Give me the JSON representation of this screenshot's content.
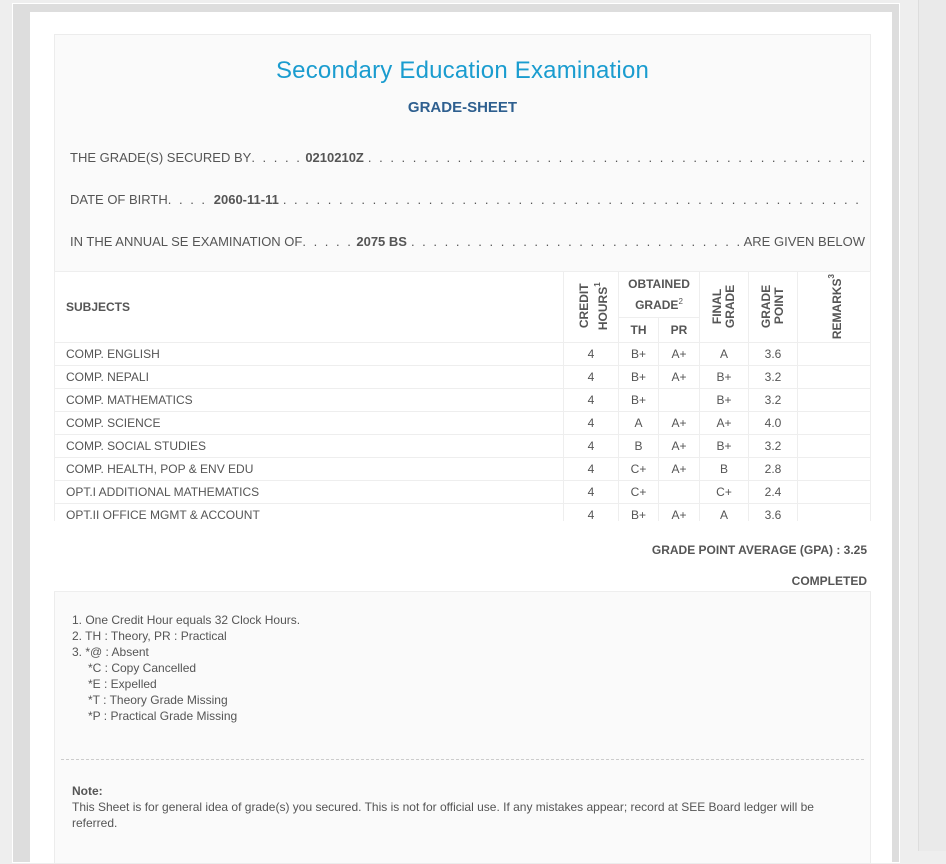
{
  "header": {
    "title": "Secondary Education Examination",
    "subtitle": "GRADE-SHEET"
  },
  "info": {
    "secured_by_label": "THE GRADE(S) SECURED BY",
    "secured_by_value": "0210210Z",
    "dob_label": "DATE OF BIRTH",
    "dob_value": "2060-11-11",
    "exam_label": "IN THE ANNUAL SE EXAMINATION OF",
    "exam_value": "2075 BS",
    "exam_suffix": "ARE GIVEN BELOW"
  },
  "table": {
    "headers": {
      "subjects": "SUBJECTS",
      "credit": "CREDIT HOURS",
      "credit_sup": "1",
      "obtained": "OBTAINED GRADE",
      "obtained_sup": "2",
      "th": "TH",
      "pr": "PR",
      "final": "FINAL GRADE",
      "gp": "GRADE POINT",
      "remarks": "REMARKS",
      "remarks_sup": "3"
    },
    "rows": [
      {
        "subject": "COMP. ENGLISH",
        "credit": "4",
        "th": "B+",
        "pr": "A+",
        "final": "A",
        "gp": "3.6",
        "remarks": ""
      },
      {
        "subject": "COMP. NEPALI",
        "credit": "4",
        "th": "B+",
        "pr": "A+",
        "final": "B+",
        "gp": "3.2",
        "remarks": ""
      },
      {
        "subject": "COMP. MATHEMATICS",
        "credit": "4",
        "th": "B+",
        "pr": "",
        "final": "B+",
        "gp": "3.2",
        "remarks": ""
      },
      {
        "subject": "COMP. SCIENCE",
        "credit": "4",
        "th": "A",
        "pr": "A+",
        "final": "A+",
        "gp": "4.0",
        "remarks": ""
      },
      {
        "subject": "COMP. SOCIAL STUDIES",
        "credit": "4",
        "th": "B",
        "pr": "A+",
        "final": "B+",
        "gp": "3.2",
        "remarks": ""
      },
      {
        "subject": "COMP. HEALTH, POP & ENV EDU",
        "credit": "4",
        "th": "C+",
        "pr": "A+",
        "final": "B",
        "gp": "2.8",
        "remarks": ""
      },
      {
        "subject": "OPT.I ADDITIONAL MATHEMATICS",
        "credit": "4",
        "th": "C+",
        "pr": "",
        "final": "C+",
        "gp": "2.4",
        "remarks": ""
      },
      {
        "subject": "OPT.II OFFICE MGMT & ACCOUNT",
        "credit": "4",
        "th": "B+",
        "pr": "A+",
        "final": "A",
        "gp": "3.6",
        "remarks": ""
      }
    ]
  },
  "summary": {
    "gpa": "GRADE POINT AVERAGE (GPA) : 3.25",
    "status": "COMPLETED"
  },
  "footnotes": [
    "1. One Credit Hour equals 32 Clock Hours.",
    "2. TH : Theory, PR : Practical",
    "3. *@ : Absent",
    "*C : Copy Cancelled",
    "*E : Expelled",
    "*T : Theory Grade Missing",
    "*P : Practical Grade Missing"
  ],
  "note": {
    "label": "Note:",
    "text": "This Sheet is for general idea of grade(s) you secured. This is not for official use. If any mistakes appear; record at SEE Board ledger will be referred."
  }
}
